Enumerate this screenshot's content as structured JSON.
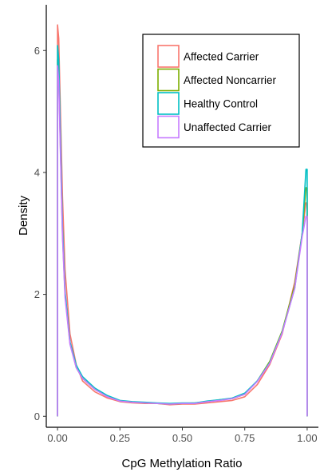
{
  "chart_data": {
    "type": "line",
    "xlabel": "CpG Methylation Ratio",
    "ylabel": "Density",
    "xlim": [
      -0.045,
      1.045
    ],
    "ylim": [
      -0.18,
      6.75
    ],
    "x_ticks": [
      0.0,
      0.25,
      0.5,
      0.75,
      1.0
    ],
    "x_tick_labels": [
      "0.00",
      "0.25",
      "0.50",
      "0.75",
      "1.00"
    ],
    "y_ticks": [
      0,
      2,
      4,
      6
    ],
    "y_tick_labels": [
      "0",
      "2",
      "4",
      "6"
    ],
    "grid": false,
    "legend_position": "top-right",
    "series": [
      {
        "name": "Affected Carrier",
        "color": "#F8766D",
        "points": [
          [
            0,
            0
          ],
          [
            0,
            6.42
          ],
          [
            0.005,
            6.2
          ],
          [
            0.01,
            5.3
          ],
          [
            0.02,
            3.6
          ],
          [
            0.03,
            2.4
          ],
          [
            0.05,
            1.35
          ],
          [
            0.075,
            0.85
          ],
          [
            0.1,
            0.58
          ],
          [
            0.15,
            0.4
          ],
          [
            0.2,
            0.3
          ],
          [
            0.25,
            0.24
          ],
          [
            0.3,
            0.22
          ],
          [
            0.35,
            0.21
          ],
          [
            0.4,
            0.21
          ],
          [
            0.45,
            0.19
          ],
          [
            0.5,
            0.2
          ],
          [
            0.55,
            0.2
          ],
          [
            0.6,
            0.22
          ],
          [
            0.65,
            0.24
          ],
          [
            0.7,
            0.26
          ],
          [
            0.75,
            0.32
          ],
          [
            0.8,
            0.52
          ],
          [
            0.85,
            0.85
          ],
          [
            0.9,
            1.35
          ],
          [
            0.95,
            2.2
          ],
          [
            0.98,
            3.0
          ],
          [
            0.995,
            3.5
          ],
          [
            1.0,
            3.5
          ],
          [
            1.0,
            0
          ]
        ]
      },
      {
        "name": "Affected Noncarrier",
        "color": "#7CAE00",
        "points": [
          [
            0,
            0
          ],
          [
            0,
            5.85
          ],
          [
            0.005,
            5.6
          ],
          [
            0.01,
            4.7
          ],
          [
            0.02,
            3.0
          ],
          [
            0.03,
            2.0
          ],
          [
            0.05,
            1.2
          ],
          [
            0.075,
            0.8
          ],
          [
            0.1,
            0.62
          ],
          [
            0.15,
            0.44
          ],
          [
            0.2,
            0.33
          ],
          [
            0.25,
            0.25
          ],
          [
            0.3,
            0.23
          ],
          [
            0.35,
            0.22
          ],
          [
            0.4,
            0.21
          ],
          [
            0.45,
            0.2
          ],
          [
            0.5,
            0.21
          ],
          [
            0.55,
            0.22
          ],
          [
            0.6,
            0.24
          ],
          [
            0.65,
            0.27
          ],
          [
            0.7,
            0.29
          ],
          [
            0.75,
            0.36
          ],
          [
            0.8,
            0.58
          ],
          [
            0.85,
            0.9
          ],
          [
            0.9,
            1.4
          ],
          [
            0.95,
            2.15
          ],
          [
            0.98,
            3.0
          ],
          [
            0.995,
            3.75
          ],
          [
            1.0,
            3.75
          ],
          [
            1.0,
            0
          ]
        ]
      },
      {
        "name": "Healthy Control",
        "color": "#00BFC4",
        "points": [
          [
            0,
            0
          ],
          [
            0,
            6.08
          ],
          [
            0.005,
            5.85
          ],
          [
            0.01,
            4.9
          ],
          [
            0.02,
            3.1
          ],
          [
            0.03,
            2.05
          ],
          [
            0.05,
            1.22
          ],
          [
            0.075,
            0.84
          ],
          [
            0.1,
            0.65
          ],
          [
            0.15,
            0.46
          ],
          [
            0.2,
            0.34
          ],
          [
            0.25,
            0.26
          ],
          [
            0.3,
            0.24
          ],
          [
            0.35,
            0.23
          ],
          [
            0.4,
            0.22
          ],
          [
            0.45,
            0.21
          ],
          [
            0.5,
            0.22
          ],
          [
            0.55,
            0.22
          ],
          [
            0.6,
            0.25
          ],
          [
            0.65,
            0.27
          ],
          [
            0.7,
            0.3
          ],
          [
            0.75,
            0.38
          ],
          [
            0.8,
            0.58
          ],
          [
            0.85,
            0.88
          ],
          [
            0.9,
            1.38
          ],
          [
            0.95,
            2.1
          ],
          [
            0.98,
            3.0
          ],
          [
            0.995,
            4.05
          ],
          [
            1.0,
            4.05
          ],
          [
            1.0,
            0
          ]
        ]
      },
      {
        "name": "Unaffected Carrier",
        "color": "#C77CFF",
        "points": [
          [
            0,
            0
          ],
          [
            0,
            5.75
          ],
          [
            0.005,
            5.5
          ],
          [
            0.01,
            4.6
          ],
          [
            0.02,
            2.95
          ],
          [
            0.03,
            1.95
          ],
          [
            0.05,
            1.18
          ],
          [
            0.075,
            0.8
          ],
          [
            0.1,
            0.62
          ],
          [
            0.15,
            0.44
          ],
          [
            0.2,
            0.32
          ],
          [
            0.25,
            0.25
          ],
          [
            0.3,
            0.23
          ],
          [
            0.35,
            0.22
          ],
          [
            0.4,
            0.21
          ],
          [
            0.45,
            0.2
          ],
          [
            0.5,
            0.21
          ],
          [
            0.55,
            0.21
          ],
          [
            0.6,
            0.24
          ],
          [
            0.65,
            0.26
          ],
          [
            0.7,
            0.29
          ],
          [
            0.75,
            0.36
          ],
          [
            0.8,
            0.57
          ],
          [
            0.85,
            0.87
          ],
          [
            0.9,
            1.37
          ],
          [
            0.95,
            2.1
          ],
          [
            0.98,
            2.95
          ],
          [
            0.995,
            3.28
          ],
          [
            1.0,
            3.28
          ],
          [
            1.0,
            0
          ]
        ]
      }
    ]
  }
}
